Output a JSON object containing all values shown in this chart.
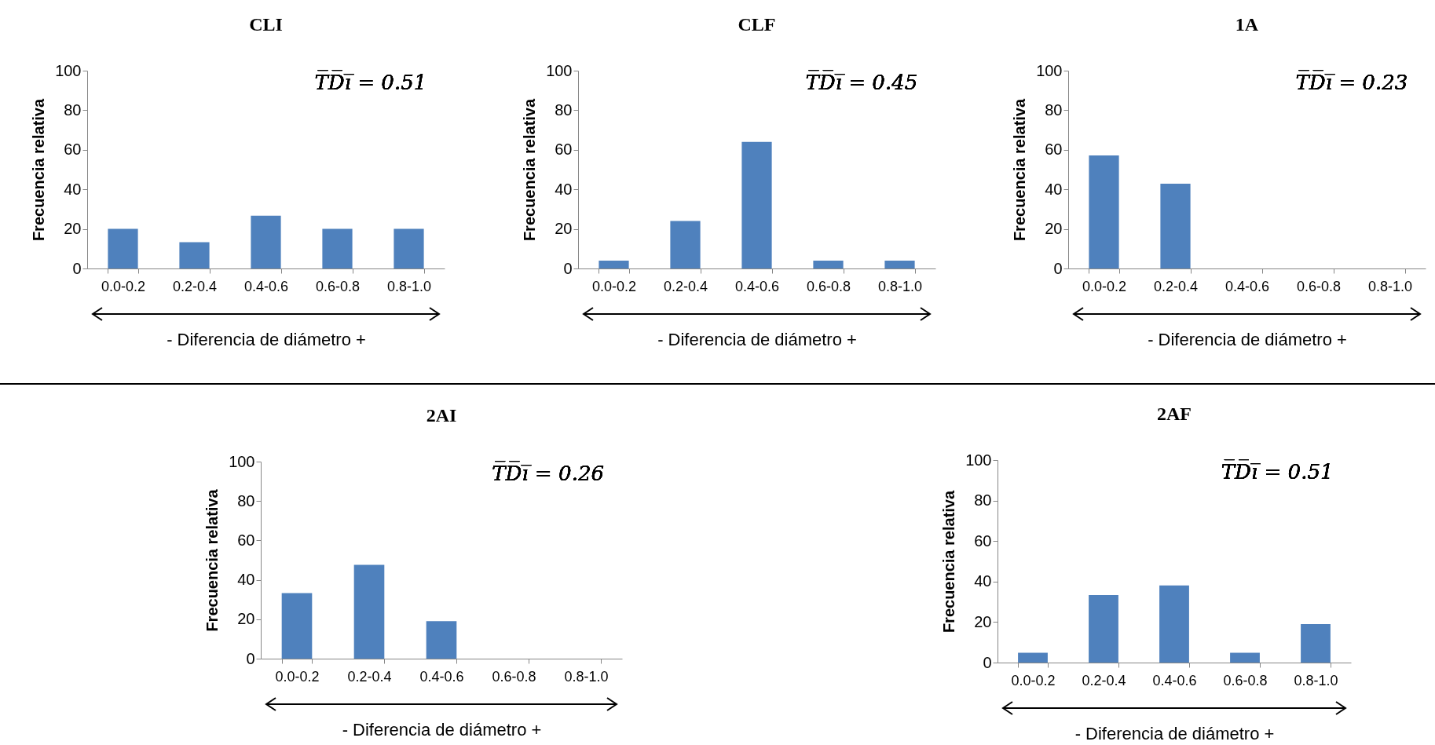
{
  "chart_data": [
    {
      "type": "bar",
      "title": "CLI",
      "categories": [
        "0.0-0.2",
        "0.2-0.4",
        "0.4-0.6",
        "0.6-0.8",
        "0.8-1.0"
      ],
      "values": [
        20,
        13.3,
        26.7,
        20,
        20
      ],
      "color": "#4f81bd",
      "ylim": [
        0,
        100
      ],
      "yticks": [
        0,
        20,
        40,
        60,
        80,
        100
      ],
      "xlabel": "-   Diferencia de diámetro   +",
      "ylabel": "Frecuencia relativa",
      "annotations": [
        "T̅D̅i̅ = 0.51"
      ]
    },
    {
      "type": "bar",
      "title": "CLF",
      "categories": [
        "0.0-0.2",
        "0.2-0.4",
        "0.4-0.6",
        "0.6-0.8",
        "0.8-1.0"
      ],
      "values": [
        4,
        24,
        64,
        4,
        4
      ],
      "color": "#4f81bd",
      "ylim": [
        0,
        100
      ],
      "yticks": [
        0,
        20,
        40,
        60,
        80,
        100
      ],
      "xlabel": "-   Diferencia de diámetro   +",
      "ylabel": "Frecuencia relativa",
      "annotations": [
        "T̅D̅i̅ = 0.45"
      ]
    },
    {
      "type": "bar",
      "title": "1A",
      "categories": [
        "0.0-0.2",
        "0.2-0.4",
        "0.4-0.6",
        "0.6-0.8",
        "0.8-1.0"
      ],
      "values": [
        57.1,
        42.9,
        0,
        0,
        0
      ],
      "color": "#4f81bd",
      "ylim": [
        0,
        100
      ],
      "yticks": [
        0,
        20,
        40,
        60,
        80,
        100
      ],
      "xlabel": "-   Diferencia de diámetro   +",
      "ylabel": "Frecuencia relativa",
      "annotations": [
        "T̅D̅i̅ = 0.23"
      ]
    },
    {
      "type": "bar",
      "title": "2AI",
      "categories": [
        "0.0-0.2",
        "0.2-0.4",
        "0.4-0.6",
        "0.6-0.8",
        "0.8-1.0"
      ],
      "values": [
        33.3,
        47.6,
        19,
        0,
        0
      ],
      "color": "#4f81bd",
      "ylim": [
        0,
        100
      ],
      "yticks": [
        0,
        20,
        40,
        60,
        80,
        100
      ],
      "xlabel": "-   Diferencia de diámetro   +",
      "ylabel": "Frecuencia relativa",
      "annotations": [
        "T̅D̅i̅ = 0.26"
      ]
    },
    {
      "type": "bar",
      "title": "2AF",
      "categories": [
        "0.0-0.2",
        "0.2-0.4",
        "0.4-0.6",
        "0.6-0.8",
        "0.8-1.0"
      ],
      "values": [
        4.8,
        33.3,
        38.1,
        4.8,
        19
      ],
      "color": "#4f81bd",
      "ylim": [
        0,
        100
      ],
      "yticks": [
        0,
        20,
        40,
        60,
        80,
        100
      ],
      "xlabel": "-   Diferencia de diámetro   +",
      "ylabel": "Frecuencia relativa",
      "annotations": [
        "T̅D̅i̅ = 0.51"
      ]
    }
  ]
}
